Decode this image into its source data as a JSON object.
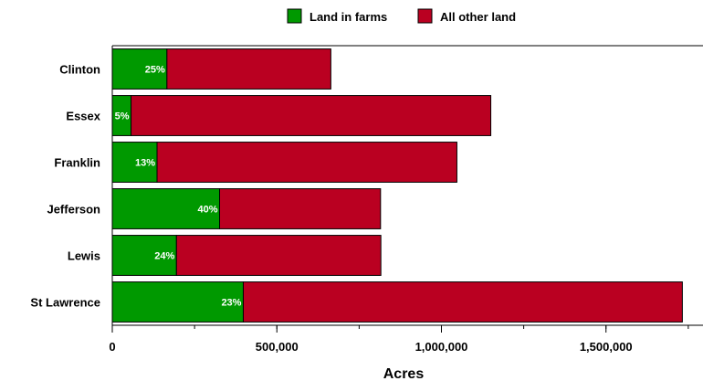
{
  "chart_data": {
    "type": "bar",
    "orientation": "horizontal",
    "stacked": true,
    "categories": [
      "Clinton",
      "Essex",
      "Franklin",
      "Jefferson",
      "Lewis",
      "St Lawrence"
    ],
    "series": [
      {
        "name": "Land in farms",
        "color": "#009900",
        "values": [
          166000,
          57000,
          136000,
          326000,
          195000,
          398000
        ],
        "labels": [
          "25%",
          "5%",
          "13%",
          "40%",
          "24%",
          "23%"
        ]
      },
      {
        "name": "All other land",
        "color": "#BA0021",
        "values": [
          498000,
          1093000,
          911000,
          489000,
          621000,
          1334000
        ]
      }
    ],
    "xlabel": "Acres",
    "xlim": [
      0,
      1800000
    ],
    "x_ticks": [
      {
        "value": 0,
        "label": "0"
      },
      {
        "value": 500000,
        "label": "500,000"
      },
      {
        "value": 1000000,
        "label": "1,000,000"
      },
      {
        "value": 1500000,
        "label": "1,500,000"
      }
    ],
    "x_minor_step": 250000,
    "legend_position": "top-center",
    "grid": false
  }
}
